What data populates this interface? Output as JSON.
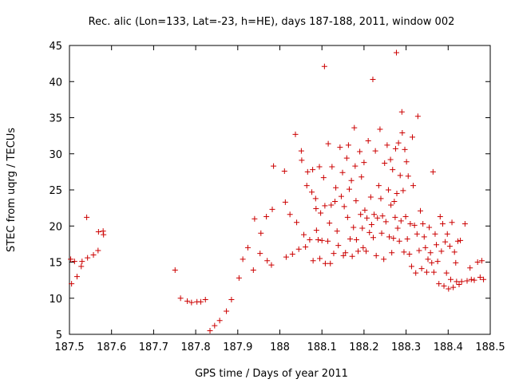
{
  "chart_data": {
    "type": "scatter",
    "title": "Rec. alic (Lon=133, Lat=-23, h=HE), days 187-188, 2011, window 002",
    "xlabel": "GPS time / Days of year 2011",
    "ylabel": "STEC from uqrg / TECUs",
    "xlim": [
      187.5,
      188.5
    ],
    "ylim": [
      5,
      45
    ],
    "x_ticks": [
      187.5,
      187.6,
      187.7,
      187.8,
      187.9,
      188.0,
      188.1,
      188.2,
      188.3,
      188.4,
      188.5
    ],
    "x_tick_labels": [
      "187.5",
      "187.6",
      "187.7",
      "187.8",
      "187.9",
      "188",
      "188.1",
      "188.2",
      "188.3",
      "188.4",
      "188.5"
    ],
    "y_ticks": [
      5,
      10,
      15,
      20,
      25,
      30,
      35,
      40,
      45
    ],
    "y_tick_labels": [
      "5",
      "10",
      "15",
      "20",
      "25",
      "30",
      "35",
      "40",
      "45"
    ],
    "grid": false,
    "marker": "+",
    "color": "#cc0000",
    "series": [
      {
        "name": "STEC",
        "points": [
          [
            187.503,
            15.4
          ],
          [
            187.505,
            12.0
          ],
          [
            187.512,
            15.1
          ],
          [
            187.518,
            13.0
          ],
          [
            187.528,
            14.4
          ],
          [
            187.53,
            15.1
          ],
          [
            187.541,
            21.2
          ],
          [
            187.543,
            15.6
          ],
          [
            187.557,
            16.0
          ],
          [
            187.568,
            16.6
          ],
          [
            187.569,
            19.2
          ],
          [
            187.58,
            19.3
          ],
          [
            187.581,
            18.8
          ],
          [
            187.751,
            13.9
          ],
          [
            187.764,
            10.0
          ],
          [
            187.78,
            9.6
          ],
          [
            187.79,
            9.4
          ],
          [
            187.803,
            9.5
          ],
          [
            187.812,
            9.5
          ],
          [
            187.823,
            9.8
          ],
          [
            187.834,
            5.5
          ],
          [
            187.845,
            6.2
          ],
          [
            187.857,
            6.9
          ],
          [
            187.873,
            8.2
          ],
          [
            187.885,
            9.8
          ],
          [
            187.903,
            12.8
          ],
          [
            187.912,
            15.4
          ],
          [
            187.924,
            17.0
          ],
          [
            187.937,
            13.9
          ],
          [
            187.94,
            21.0
          ],
          [
            187.953,
            16.2
          ],
          [
            187.955,
            19.0
          ],
          [
            187.968,
            21.3
          ],
          [
            187.97,
            15.2
          ],
          [
            187.98,
            14.6
          ],
          [
            187.982,
            22.3
          ],
          [
            187.985,
            28.3
          ],
          [
            188.011,
            27.6
          ],
          [
            188.013,
            23.3
          ],
          [
            188.015,
            15.7
          ],
          [
            188.024,
            21.6
          ],
          [
            188.03,
            16.1
          ],
          [
            188.037,
            32.7
          ],
          [
            188.04,
            20.5
          ],
          [
            188.045,
            16.8
          ],
          [
            188.051,
            30.4
          ],
          [
            188.052,
            29.1
          ],
          [
            188.057,
            18.8
          ],
          [
            188.061,
            17.1
          ],
          [
            188.064,
            25.6
          ],
          [
            188.066,
            27.5
          ],
          [
            188.071,
            18.1
          ],
          [
            188.076,
            24.7
          ],
          [
            188.078,
            27.8
          ],
          [
            188.079,
            15.2
          ],
          [
            188.085,
            23.8
          ],
          [
            188.086,
            22.4
          ],
          [
            188.087,
            19.4
          ],
          [
            188.091,
            18.1
          ],
          [
            188.094,
            28.2
          ],
          [
            188.095,
            15.5
          ],
          [
            188.097,
            21.8
          ],
          [
            188.1,
            18.0
          ],
          [
            188.104,
            26.7
          ],
          [
            188.106,
            42.1
          ],
          [
            188.107,
            22.8
          ],
          [
            188.108,
            14.8
          ],
          [
            188.114,
            17.9
          ],
          [
            188.115,
            31.4
          ],
          [
            188.118,
            20.4
          ],
          [
            188.12,
            14.8
          ],
          [
            188.122,
            22.9
          ],
          [
            188.124,
            28.2
          ],
          [
            188.128,
            16.2
          ],
          [
            188.131,
            23.4
          ],
          [
            188.133,
            25.3
          ],
          [
            188.136,
            19.3
          ],
          [
            188.139,
            17.3
          ],
          [
            188.143,
            30.9
          ],
          [
            188.146,
            24.1
          ],
          [
            188.149,
            27.4
          ],
          [
            188.151,
            15.9
          ],
          [
            188.153,
            22.7
          ],
          [
            188.156,
            16.3
          ],
          [
            188.159,
            29.4
          ],
          [
            188.161,
            21.2
          ],
          [
            188.163,
            31.2
          ],
          [
            188.165,
            25.1
          ],
          [
            188.167,
            18.2
          ],
          [
            188.17,
            26.3
          ],
          [
            188.172,
            15.8
          ],
          [
            188.175,
            19.8
          ],
          [
            188.177,
            33.6
          ],
          [
            188.179,
            28.3
          ],
          [
            188.181,
            23.5
          ],
          [
            188.182,
            18.1
          ],
          [
            188.186,
            16.5
          ],
          [
            188.19,
            30.3
          ],
          [
            188.192,
            21.6
          ],
          [
            188.194,
            26.8
          ],
          [
            188.196,
            19.7
          ],
          [
            188.198,
            17.0
          ],
          [
            188.2,
            28.8
          ],
          [
            188.202,
            22.2
          ],
          [
            188.205,
            16.5
          ],
          [
            188.207,
            21.1
          ],
          [
            188.21,
            31.8
          ],
          [
            188.213,
            19.1
          ],
          [
            188.216,
            24.0
          ],
          [
            188.218,
            20.2
          ],
          [
            188.221,
            40.3
          ],
          [
            188.222,
            18.4
          ],
          [
            188.224,
            21.6
          ],
          [
            188.227,
            30.4
          ],
          [
            188.229,
            15.9
          ],
          [
            188.232,
            21.1
          ],
          [
            188.235,
            25.6
          ],
          [
            188.238,
            33.4
          ],
          [
            188.24,
            23.8
          ],
          [
            188.242,
            19.0
          ],
          [
            188.244,
            21.4
          ],
          [
            188.247,
            15.4
          ],
          [
            188.249,
            28.7
          ],
          [
            188.252,
            20.6
          ],
          [
            188.255,
            31.2
          ],
          [
            188.258,
            25.0
          ],
          [
            188.26,
            18.5
          ],
          [
            188.263,
            29.2
          ],
          [
            188.264,
            22.9
          ],
          [
            188.266,
            16.3
          ],
          [
            188.268,
            27.8
          ],
          [
            188.27,
            18.3
          ],
          [
            188.272,
            23.4
          ],
          [
            188.274,
            21.2
          ],
          [
            188.275,
            30.7
          ],
          [
            188.277,
            44.0
          ],
          [
            188.278,
            24.5
          ],
          [
            188.28,
            19.7
          ],
          [
            188.282,
            31.5
          ],
          [
            188.284,
            17.9
          ],
          [
            188.286,
            27.0
          ],
          [
            188.288,
            20.7
          ],
          [
            188.29,
            35.8
          ],
          [
            188.291,
            32.9
          ],
          [
            188.293,
            24.9
          ],
          [
            188.295,
            16.4
          ],
          [
            188.297,
            30.6
          ],
          [
            188.299,
            21.3
          ],
          [
            188.301,
            28.9
          ],
          [
            188.303,
            18.2
          ],
          [
            188.305,
            26.9
          ],
          [
            188.308,
            16.1
          ],
          [
            188.31,
            20.3
          ],
          [
            188.313,
            14.4
          ],
          [
            188.315,
            32.3
          ],
          [
            188.317,
            25.6
          ],
          [
            188.32,
            20.1
          ],
          [
            188.323,
            13.5
          ],
          [
            188.326,
            18.9
          ],
          [
            188.328,
            35.2
          ],
          [
            188.331,
            16.6
          ],
          [
            188.334,
            22.1
          ],
          [
            188.337,
            14.1
          ],
          [
            188.34,
            20.3
          ],
          [
            188.343,
            18.5
          ],
          [
            188.346,
            17.0
          ],
          [
            188.349,
            13.6
          ],
          [
            188.352,
            15.4
          ],
          [
            188.355,
            19.8
          ],
          [
            188.358,
            16.3
          ],
          [
            188.361,
            14.9
          ],
          [
            188.364,
            27.5
          ],
          [
            188.366,
            13.6
          ],
          [
            188.369,
            18.9
          ],
          [
            188.372,
            17.4
          ],
          [
            188.375,
            15.1
          ],
          [
            188.378,
            12.0
          ],
          [
            188.381,
            21.3
          ],
          [
            188.384,
            16.5
          ],
          [
            188.387,
            20.3
          ],
          [
            188.39,
            11.7
          ],
          [
            188.393,
            17.8
          ],
          [
            188.396,
            13.5
          ],
          [
            188.398,
            18.9
          ],
          [
            188.401,
            11.3
          ],
          [
            188.404,
            17.2
          ],
          [
            188.406,
            12.6
          ],
          [
            188.409,
            20.5
          ],
          [
            188.412,
            11.5
          ],
          [
            188.415,
            16.4
          ],
          [
            188.418,
            14.9
          ],
          [
            188.42,
            12.3
          ],
          [
            188.423,
            17.9
          ],
          [
            188.426,
            11.9
          ],
          [
            188.429,
            18.0
          ],
          [
            188.432,
            12.3
          ],
          [
            188.44,
            20.3
          ],
          [
            188.445,
            12.4
          ],
          [
            188.452,
            14.2
          ],
          [
            188.455,
            12.6
          ],
          [
            188.462,
            12.5
          ],
          [
            188.47,
            15.0
          ],
          [
            188.476,
            12.9
          ],
          [
            188.48,
            15.2
          ],
          [
            188.484,
            12.6
          ]
        ]
      }
    ]
  }
}
